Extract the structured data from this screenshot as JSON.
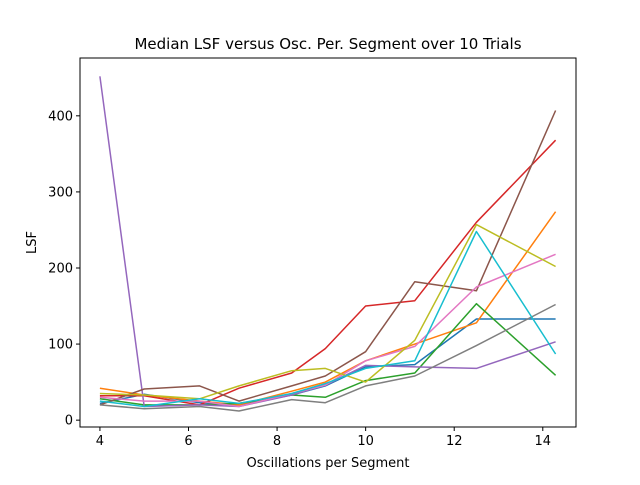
{
  "chart_data": {
    "type": "line",
    "title": "Median LSF versus Osc. Per. Segment over 10 Trials",
    "xlabel": "Oscillations per Segment",
    "ylabel": "LSF",
    "xlim": [
      3.55,
      14.75
    ],
    "ylim": [
      -9,
      476
    ],
    "xticks": [
      4,
      6,
      8,
      10,
      12,
      14
    ],
    "yticks": [
      0,
      100,
      200,
      300,
      400
    ],
    "grid": false,
    "legend": "none",
    "x": [
      4.0,
      5.0,
      6.25,
      7.14,
      8.33,
      9.09,
      10.0,
      11.11,
      12.5,
      14.29
    ],
    "series": [
      {
        "color": "#1f77b4",
        "values": [
          22,
          34,
          23,
          20,
          33,
          45,
          70,
          73,
          133,
          133
        ]
      },
      {
        "color": "#ff7f0e",
        "values": [
          42,
          33,
          25,
          20,
          38,
          50,
          78,
          100,
          128,
          274
        ]
      },
      {
        "color": "#2ca02c",
        "values": [
          28,
          20,
          20,
          22,
          33,
          30,
          52,
          62,
          153,
          59
        ]
      },
      {
        "color": "#d62728",
        "values": [
          32,
          32,
          20,
          42,
          62,
          94,
          150,
          157,
          260,
          368
        ]
      },
      {
        "color": "#9467bd",
        "values": [
          452,
          18,
          20,
          18,
          33,
          46,
          72,
          70,
          68,
          103
        ]
      },
      {
        "color": "#8c564b",
        "values": [
          20,
          41,
          45,
          25,
          45,
          58,
          90,
          182,
          170,
          407
        ]
      },
      {
        "color": "#e377c2",
        "values": [
          30,
          25,
          25,
          18,
          35,
          46,
          78,
          97,
          175,
          218
        ]
      },
      {
        "color": "#7f7f7f",
        "values": [
          20,
          15,
          18,
          12,
          27,
          23,
          45,
          58,
          98,
          152
        ]
      },
      {
        "color": "#bcbd22",
        "values": [
          35,
          33,
          28,
          45,
          65,
          68,
          50,
          105,
          257,
          202
        ]
      },
      {
        "color": "#17becf",
        "values": [
          25,
          18,
          28,
          22,
          35,
          48,
          68,
          78,
          248,
          87
        ]
      }
    ]
  }
}
